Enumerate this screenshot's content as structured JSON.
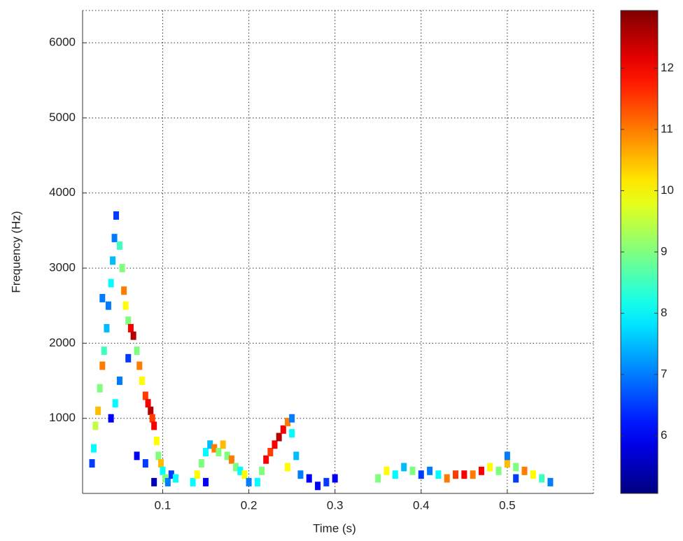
{
  "chart_data": {
    "type": "heatmap",
    "xlabel": "Time (s)",
    "ylabel": "Frequency (Hz)",
    "colormap": "jet",
    "grid": true,
    "xlim": [
      0.007,
      0.6
    ],
    "xticks": [
      0.1,
      0.2,
      0.3,
      0.4,
      0.5
    ],
    "ylim": [
      0,
      6430
    ],
    "yticks": [
      1000,
      2000,
      3000,
      4000,
      5000,
      6000
    ],
    "clim": [
      5.06,
      12.94
    ],
    "cticks": [
      6,
      7,
      8,
      9,
      10,
      11,
      12
    ],
    "x": [
      0.018,
      0.02,
      0.022,
      0.025,
      0.027,
      0.03,
      0.032,
      0.035,
      0.037,
      0.04,
      0.042,
      0.044,
      0.046,
      0.05,
      0.053,
      0.055,
      0.057,
      0.06,
      0.063,
      0.066,
      0.07,
      0.073,
      0.076,
      0.08,
      0.083,
      0.086,
      0.088,
      0.09,
      0.093,
      0.095,
      0.098,
      0.1,
      0.103,
      0.106,
      0.11,
      0.115,
      0.04,
      0.05,
      0.06,
      0.03,
      0.07,
      0.08,
      0.09,
      0.045,
      0.135,
      0.14,
      0.145,
      0.15,
      0.155,
      0.16,
      0.165,
      0.17,
      0.175,
      0.18,
      0.185,
      0.19,
      0.195,
      0.2,
      0.15,
      0.21,
      0.215,
      0.22,
      0.225,
      0.23,
      0.235,
      0.24,
      0.245,
      0.25,
      0.25,
      0.255,
      0.245,
      0.26,
      0.27,
      0.28,
      0.29,
      0.3,
      0.35,
      0.36,
      0.37,
      0.38,
      0.39,
      0.4,
      0.41,
      0.42,
      0.43,
      0.44,
      0.45,
      0.46,
      0.47,
      0.48,
      0.49,
      0.5,
      0.51,
      0.52,
      0.53,
      0.54,
      0.55,
      0.5,
      0.51
    ],
    "y": [
      400,
      600,
      900,
      1100,
      1400,
      1700,
      1900,
      2200,
      2500,
      2800,
      3100,
      3400,
      3700,
      3300,
      3000,
      2700,
      2500,
      2300,
      2200,
      2100,
      1900,
      1700,
      1500,
      1300,
      1200,
      1100,
      1000,
      900,
      700,
      500,
      400,
      300,
      200,
      150,
      250,
      200,
      1000,
      1500,
      1800,
      2600,
      500,
      400,
      150,
      1200,
      150,
      250,
      400,
      550,
      650,
      600,
      550,
      650,
      500,
      450,
      350,
      300,
      250,
      150,
      150,
      150,
      300,
      450,
      550,
      650,
      750,
      850,
      950,
      1000,
      800,
      500,
      350,
      250,
      200,
      100,
      150,
      200,
      200,
      300,
      250,
      350,
      300,
      250,
      300,
      250,
      200,
      250,
      250,
      250,
      300,
      350,
      300,
      400,
      350,
      300,
      250,
      200,
      150,
      500,
      200
    ],
    "values": [
      6.5,
      8,
      9.5,
      10.5,
      9,
      11,
      8.5,
      7.5,
      7,
      8,
      7.5,
      7,
      6.5,
      8.5,
      9,
      11,
      10,
      9,
      12,
      12.5,
      9,
      11,
      10,
      11.5,
      12,
      12.5,
      11.5,
      12,
      10,
      9,
      10.5,
      8,
      9,
      7,
      6.5,
      8,
      6,
      7,
      6.5,
      7,
      6,
      6.5,
      5.5,
      8,
      8,
      10,
      9,
      8,
      7.5,
      11,
      9,
      10.5,
      9,
      11,
      9,
      8,
      10,
      7,
      6,
      8,
      9,
      12,
      11.5,
      12,
      12.5,
      12,
      11,
      7,
      8,
      7.5,
      10,
      7,
      6,
      6,
      6.5,
      6,
      9,
      10,
      8,
      7.5,
      9,
      6.5,
      7,
      8,
      11,
      11.5,
      12,
      11,
      12,
      10,
      9,
      10.5,
      9,
      11,
      10,
      8.5,
      7,
      7,
      6.5
    ]
  }
}
